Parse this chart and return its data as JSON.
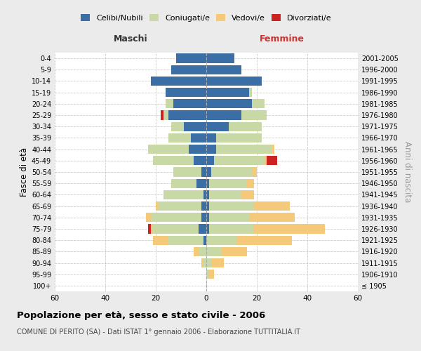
{
  "age_groups": [
    "100+",
    "95-99",
    "90-94",
    "85-89",
    "80-84",
    "75-79",
    "70-74",
    "65-69",
    "60-64",
    "55-59",
    "50-54",
    "45-49",
    "40-44",
    "35-39",
    "30-34",
    "25-29",
    "20-24",
    "15-19",
    "10-14",
    "5-9",
    "0-4"
  ],
  "birth_years": [
    "≤ 1905",
    "1906-1910",
    "1911-1915",
    "1916-1920",
    "1921-1925",
    "1926-1930",
    "1931-1935",
    "1936-1940",
    "1941-1945",
    "1946-1950",
    "1951-1955",
    "1956-1960",
    "1961-1965",
    "1966-1970",
    "1971-1975",
    "1976-1980",
    "1981-1985",
    "1986-1990",
    "1991-1995",
    "1996-2000",
    "2001-2005"
  ],
  "colors": {
    "celibi": "#3a6ea5",
    "coniugati": "#c8d9a6",
    "vedovi": "#f5c97a",
    "divorziati": "#cc2222"
  },
  "maschi": {
    "celibi": [
      0,
      0,
      0,
      0,
      1,
      3,
      2,
      2,
      1,
      4,
      2,
      5,
      7,
      6,
      9,
      15,
      13,
      16,
      22,
      14,
      12
    ],
    "coniugati": [
      0,
      0,
      1,
      3,
      14,
      18,
      20,
      17,
      16,
      10,
      11,
      16,
      16,
      9,
      5,
      2,
      3,
      0,
      0,
      0,
      0
    ],
    "vedovi": [
      0,
      0,
      1,
      2,
      6,
      1,
      2,
      1,
      0,
      0,
      0,
      0,
      0,
      0,
      0,
      0,
      0,
      0,
      0,
      0,
      0
    ],
    "divorziati": [
      0,
      0,
      0,
      0,
      0,
      1,
      0,
      0,
      0,
      0,
      0,
      0,
      0,
      0,
      0,
      1,
      0,
      0,
      0,
      0,
      0
    ]
  },
  "femmine": {
    "celibi": [
      0,
      0,
      0,
      0,
      0,
      1,
      1,
      1,
      1,
      1,
      2,
      3,
      4,
      4,
      9,
      14,
      18,
      17,
      22,
      14,
      11
    ],
    "coniugati": [
      0,
      1,
      2,
      6,
      12,
      18,
      16,
      18,
      13,
      15,
      16,
      20,
      22,
      18,
      13,
      10,
      5,
      1,
      0,
      0,
      0
    ],
    "vedovi": [
      0,
      2,
      5,
      10,
      22,
      28,
      18,
      14,
      5,
      3,
      2,
      1,
      1,
      0,
      0,
      0,
      0,
      0,
      0,
      0,
      0
    ],
    "divorziati": [
      0,
      0,
      0,
      0,
      0,
      0,
      0,
      0,
      0,
      0,
      0,
      4,
      0,
      0,
      0,
      0,
      0,
      0,
      0,
      0,
      0
    ]
  },
  "xlim": 60,
  "title": "Popolazione per età, sesso e stato civile - 2006",
  "subtitle": "COMUNE DI PERITO (SA) - Dati ISTAT 1° gennaio 2006 - Elaborazione TUTTITALIA.IT",
  "ylabel_left": "Fasce di età",
  "ylabel_right": "Anni di nascita",
  "label_maschi": "Maschi",
  "label_femmine": "Femmine",
  "legend_labels": [
    "Celibi/Nubili",
    "Coniugati/e",
    "Vedovi/e",
    "Divorziati/e"
  ],
  "bg_color": "#ebebeb",
  "plot_bg_color": "#ffffff"
}
